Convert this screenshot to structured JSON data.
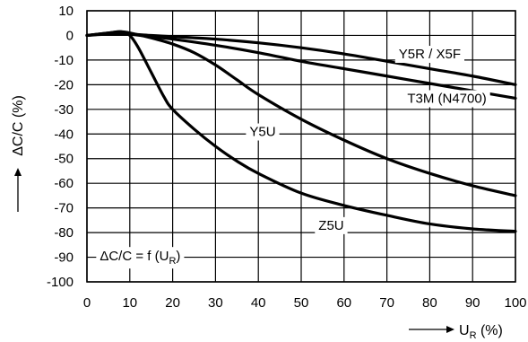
{
  "chart_data": {
    "type": "line",
    "title": "",
    "xlabel": "U",
    "xlabel_sub": "R",
    "xlabel_unit": " (%)",
    "ylabel": "ΔC/C (%)",
    "xlim": [
      0,
      100
    ],
    "ylim": [
      -100,
      10
    ],
    "xticks": [
      0,
      10,
      20,
      30,
      40,
      50,
      60,
      70,
      80,
      90,
      100
    ],
    "yticks": [
      10,
      0,
      -10,
      -20,
      -30,
      -40,
      -50,
      -60,
      -70,
      -80,
      -90,
      -100
    ],
    "grid": true,
    "formula": {
      "prefix": "ΔC/C = f (U",
      "sub": "R",
      "suffix": ")"
    },
    "series": [
      {
        "name": "Y5R / X5F",
        "x": [
          0,
          5,
          10,
          15,
          20,
          30,
          40,
          50,
          60,
          70,
          80,
          90,
          100
        ],
        "y": [
          0,
          0.5,
          0.5,
          0,
          -0.5,
          -1.5,
          -3,
          -5,
          -7.5,
          -10.5,
          -13.5,
          -16.5,
          -20
        ]
      },
      {
        "name": "T3M (N4700)",
        "x": [
          0,
          5,
          8,
          10,
          15,
          20,
          30,
          40,
          50,
          60,
          70,
          80,
          90,
          100
        ],
        "y": [
          0,
          0.8,
          1,
          0.5,
          -0.5,
          -1.5,
          -4,
          -7,
          -10.5,
          -13.5,
          -16.5,
          -19.5,
          -22.5,
          -25.5
        ]
      },
      {
        "name": "Y5U",
        "x": [
          0,
          5,
          8,
          10,
          15,
          20,
          25,
          30,
          35,
          40,
          50,
          60,
          70,
          80,
          90,
          100
        ],
        "y": [
          0,
          1,
          1.5,
          1,
          -1,
          -3.5,
          -7,
          -12,
          -18,
          -24,
          -34,
          -42.5,
          -50,
          -56,
          -61,
          -65
        ]
      },
      {
        "name": "Z5U",
        "x": [
          0,
          5,
          8,
          10,
          12,
          15,
          18,
          20,
          25,
          30,
          35,
          40,
          50,
          60,
          70,
          80,
          90,
          100
        ],
        "y": [
          0,
          1,
          1.5,
          0,
          -5,
          -15,
          -25,
          -30,
          -38,
          -45,
          -51,
          -56,
          -64,
          -69,
          -73,
          -76.5,
          -78.5,
          -79.5
        ]
      }
    ],
    "labels": {
      "Y5R": {
        "text": "Y5R / X5F",
        "at": [
          80,
          -7.5
        ]
      },
      "T3M": {
        "text": "T3M (N4700)",
        "at": [
          84,
          -25.5
        ]
      },
      "Y5U": {
        "text": "Y5U",
        "at": [
          41,
          -39
        ]
      },
      "Z5U": {
        "text": "Z5U",
        "at": [
          57,
          -77
        ]
      }
    }
  }
}
